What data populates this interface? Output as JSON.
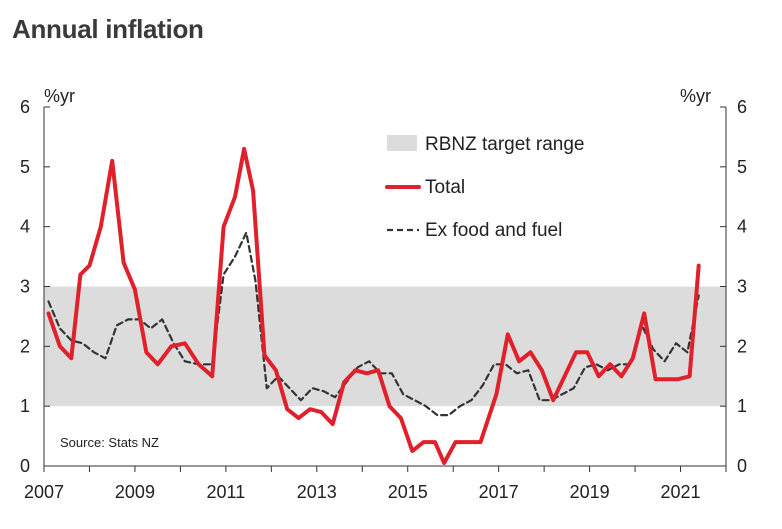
{
  "chart_data": {
    "type": "line",
    "title": "Annual inflation",
    "left_unit": "%yr",
    "right_unit": "%yr",
    "source": "Source: Stats NZ",
    "ylim": [
      0,
      6
    ],
    "y_ticks": [
      "0",
      "1",
      "2",
      "3",
      "4",
      "5",
      "6"
    ],
    "xlim": [
      2007,
      2022
    ],
    "x_ticks": [
      {
        "value": 2007,
        "label": "2007"
      },
      {
        "value": 2009,
        "label": "2009"
      },
      {
        "value": 2011,
        "label": "2011"
      },
      {
        "value": 2013,
        "label": "2013"
      },
      {
        "value": 2015,
        "label": "2015"
      },
      {
        "value": 2017,
        "label": "2017"
      },
      {
        "value": 2019,
        "label": "2019"
      },
      {
        "value": 2021,
        "label": "2021"
      }
    ],
    "target_range": {
      "name": "RBNZ target range",
      "low": 1,
      "high": 3,
      "color": "#dcdcdc"
    },
    "series": [
      {
        "name": "Total",
        "color": "#e0202a",
        "style": "solid",
        "x": [
          2007.1,
          2007.35,
          2007.6,
          2007.8,
          2008.0,
          2008.25,
          2008.5,
          2008.75,
          2009.0,
          2009.25,
          2009.5,
          2009.8,
          2010.1,
          2010.4,
          2010.7,
          2010.95,
          2011.2,
          2011.4,
          2011.6,
          2011.85,
          2012.1,
          2012.35,
          2012.6,
          2012.85,
          2013.1,
          2013.35,
          2013.6,
          2013.85,
          2014.1,
          2014.35,
          2014.6,
          2014.85,
          2015.1,
          2015.35,
          2015.6,
          2015.8,
          2016.05,
          2016.3,
          2016.6,
          2016.95,
          2017.2,
          2017.45,
          2017.7,
          2017.95,
          2018.2,
          2018.45,
          2018.7,
          2018.95,
          2019.2,
          2019.45,
          2019.7,
          2019.95,
          2020.2,
          2020.45,
          2020.7,
          2020.95,
          2021.2,
          2021.4
        ],
        "values": [
          2.55,
          2.0,
          1.8,
          3.2,
          3.35,
          4.0,
          5.1,
          3.4,
          2.95,
          1.9,
          1.7,
          2.0,
          2.05,
          1.7,
          1.5,
          4.0,
          4.5,
          5.3,
          4.6,
          1.85,
          1.6,
          0.95,
          0.8,
          0.95,
          0.9,
          0.7,
          1.4,
          1.6,
          1.55,
          1.6,
          1.0,
          0.8,
          0.25,
          0.4,
          0.4,
          0.05,
          0.4,
          0.4,
          0.4,
          1.2,
          2.2,
          1.75,
          1.9,
          1.6,
          1.1,
          1.5,
          1.9,
          1.9,
          1.5,
          1.7,
          1.5,
          1.8,
          2.55,
          1.45,
          1.45,
          1.45,
          1.5,
          3.35
        ]
      },
      {
        "name": "Ex food and fuel",
        "color": "#333333",
        "style": "dashed",
        "x": [
          2007.1,
          2007.35,
          2007.6,
          2007.85,
          2008.1,
          2008.35,
          2008.6,
          2008.85,
          2009.1,
          2009.35,
          2009.6,
          2009.85,
          2010.1,
          2010.4,
          2010.7,
          2010.95,
          2011.2,
          2011.45,
          2011.65,
          2011.9,
          2012.15,
          2012.4,
          2012.65,
          2012.9,
          2013.15,
          2013.4,
          2013.65,
          2013.9,
          2014.15,
          2014.4,
          2014.65,
          2014.9,
          2015.15,
          2015.4,
          2015.65,
          2015.9,
          2016.15,
          2016.4,
          2016.65,
          2016.9,
          2017.15,
          2017.4,
          2017.65,
          2017.9,
          2018.15,
          2018.4,
          2018.65,
          2018.9,
          2019.15,
          2019.4,
          2019.65,
          2019.9,
          2020.15,
          2020.4,
          2020.65,
          2020.9,
          2021.15,
          2021.4
        ],
        "values": [
          2.75,
          2.3,
          2.1,
          2.05,
          1.9,
          1.8,
          2.35,
          2.45,
          2.45,
          2.3,
          2.45,
          2.05,
          1.75,
          1.7,
          1.7,
          3.2,
          3.5,
          3.9,
          3.1,
          1.3,
          1.5,
          1.3,
          1.1,
          1.3,
          1.25,
          1.15,
          1.4,
          1.65,
          1.75,
          1.55,
          1.55,
          1.2,
          1.1,
          1.0,
          0.85,
          0.85,
          1.0,
          1.1,
          1.35,
          1.7,
          1.7,
          1.55,
          1.6,
          1.1,
          1.1,
          1.2,
          1.3,
          1.65,
          1.7,
          1.6,
          1.7,
          1.7,
          2.35,
          1.95,
          1.75,
          2.05,
          1.9,
          2.85
        ]
      }
    ]
  }
}
